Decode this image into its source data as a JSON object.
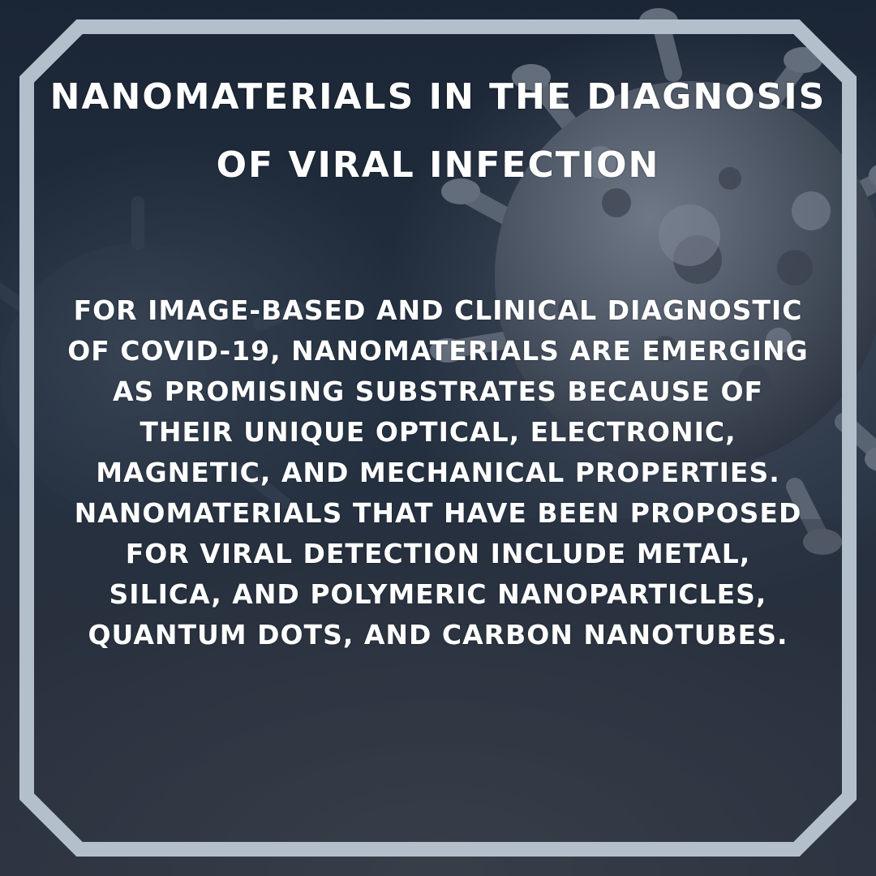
{
  "post": {
    "title": "NANOMATERIALS IN THE DIAGNOSIS OF VIRAL INFECTION",
    "body": "FOR IMAGE-BASED AND CLINICAL DIAGNOSTIC OF COVID-19, NANOMATERIALS ARE EMERGING AS PROMISING SUBSTRATES BECAUSE OF THEIR UNIQUE OPTICAL, ELECTRONIC, MAGNETIC, AND MECHANICAL PROPERTIES. NANOMATERIALS THAT HAVE BEEN PROPOSED FOR VIRAL DETECTION INCLUDE METAL, SILICA, AND POLYMERIC NANOPARTICLES, QUANTUM DOTS, AND CARBON NANOTUBES."
  },
  "colors": {
    "frame": "#b4bfcc",
    "text": "#ffffff",
    "background": "#1f2a3a"
  },
  "decor": {
    "background_image": "virus-particle-illustration",
    "frame_shape": "octagon-outline"
  }
}
